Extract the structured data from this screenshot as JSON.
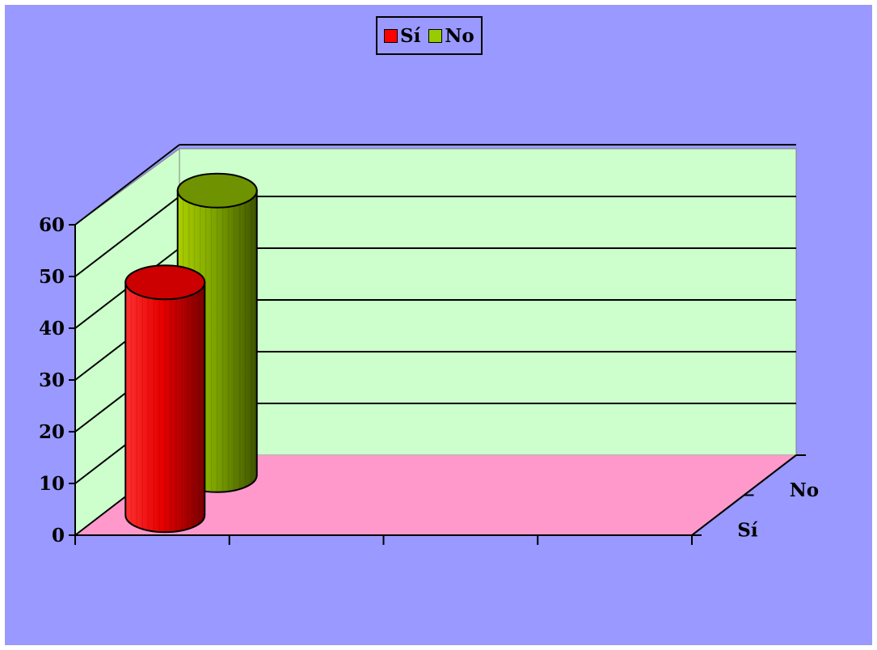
{
  "colors": {
    "chart_background": "#9999ff",
    "wall": "#ccffcc",
    "floor": "#ff99cc",
    "si_series": "#ff0000",
    "no_series": "#99cc00"
  },
  "legend": {
    "items": [
      {
        "label": "Sí",
        "color": "#ff0000"
      },
      {
        "label": "No",
        "color": "#99cc00"
      }
    ]
  },
  "chart_data": {
    "type": "bar",
    "style": "3d-cylinder",
    "categories": [
      ""
    ],
    "series": [
      {
        "name": "Sí",
        "values": [
          45
        ]
      },
      {
        "name": "No",
        "values": [
          55
        ]
      }
    ],
    "depth_labels": [
      "Sí",
      "No"
    ],
    "yticks": [
      "0",
      "10",
      "20",
      "30",
      "40",
      "50",
      "60"
    ],
    "ylim": [
      0,
      60
    ],
    "grid": true,
    "legend_position": "top"
  }
}
